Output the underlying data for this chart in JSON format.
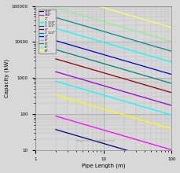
{
  "title": "",
  "xlabel": "Pipe Length (m)",
  "ylabel": "Capacity (kW)",
  "xlim": [
    1,
    100
  ],
  "ylim": [
    10,
    100000
  ],
  "bg_color": "#D8D8D8",
  "watermark": "engineeringtoolbox.com",
  "pipes": [
    {
      "label": "1/2\"",
      "color": "#000080",
      "k": 55,
      "exp": -0.55
    },
    {
      "label": "3/4\"",
      "color": "#FF00FF",
      "k": 130,
      "exp": -0.55
    },
    {
      "label": "1\"",
      "color": "#FFFF00",
      "k": 500,
      "exp": -0.55
    },
    {
      "label": "1 1/4\"",
      "color": "#00FFFF",
      "k": 1200,
      "exp": -0.55
    },
    {
      "label": "1 1/2\"",
      "color": "#9400D3",
      "k": 2200,
      "exp": -0.55
    },
    {
      "label": "2\"",
      "color": "#8B0000",
      "k": 5000,
      "exp": -0.55
    },
    {
      "label": "2 1/2\"",
      "color": "#008080",
      "k": 9000,
      "exp": -0.55
    },
    {
      "label": "3\"",
      "color": "#0000CD",
      "k": 16000,
      "exp": -0.55
    },
    {
      "label": "4\"",
      "color": "#00FFFF",
      "k": 35000,
      "exp": -0.55
    },
    {
      "label": "5\"",
      "color": "#008B8B",
      "k": 70000,
      "exp": -0.55
    },
    {
      "label": "6\"",
      "color": "#90EE90",
      "k": 130000,
      "exp": -0.55
    },
    {
      "label": "8\"",
      "color": "#FFFF66",
      "k": 320000,
      "exp": -0.55
    }
  ]
}
